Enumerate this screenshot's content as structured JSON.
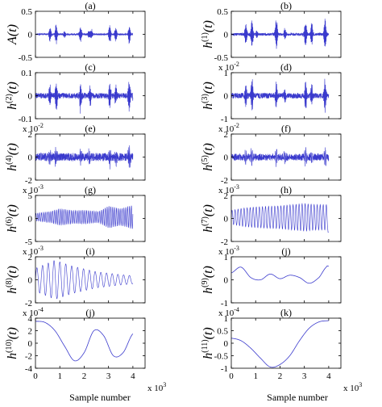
{
  "figure": {
    "xlabel": "Sample number",
    "x_multiplier": "x 10",
    "x_multiplier_exp": "3",
    "line_color": "#3a3acd"
  },
  "chart_data": [
    {
      "type": "line",
      "title": "(a)",
      "ylabel": {
        "base": "A",
        "sup": ""
      },
      "exp": "",
      "ylim": [
        -0.5,
        0.5
      ],
      "yticks": [
        -0.5,
        0,
        0.5
      ],
      "ytick_labels": [
        "-0.5",
        "0",
        "0.5"
      ],
      "xlim": [
        0,
        4.5
      ],
      "xticks": [
        0,
        1,
        2,
        3,
        4
      ],
      "xtick_labels": [],
      "signal": {
        "kind": "bursts",
        "noise": 0.02,
        "carrier": 45,
        "bursts": [
          [
            0.6,
            0.18
          ],
          [
            0.85,
            0.25
          ],
          [
            1.2,
            0.08
          ],
          [
            1.85,
            0.2
          ],
          [
            2.2,
            0.1
          ],
          [
            2.3,
            0.12
          ],
          [
            3.05,
            0.22
          ],
          [
            3.3,
            0.18
          ],
          [
            3.85,
            0.22
          ],
          [
            4.05,
            0.1
          ]
        ]
      }
    },
    {
      "type": "line",
      "title": "(b)",
      "ylabel": {
        "base": "h",
        "sup": "(1)"
      },
      "exp": "",
      "ylim": [
        -0.5,
        0.5
      ],
      "yticks": [
        -0.5,
        0,
        0.5
      ],
      "ytick_labels": [
        "-0.5",
        "0",
        "0.5"
      ],
      "xlim": [
        0,
        4.5
      ],
      "xticks": [
        0,
        1,
        2,
        3,
        4
      ],
      "xtick_labels": [],
      "signal": {
        "kind": "bursts",
        "noise": 0.03,
        "carrier": 50,
        "bursts": [
          [
            0.6,
            0.3
          ],
          [
            0.85,
            0.4
          ],
          [
            1.05,
            0.1
          ],
          [
            1.85,
            0.4
          ],
          [
            2.2,
            0.15
          ],
          [
            3.05,
            0.35
          ],
          [
            3.3,
            0.3
          ],
          [
            3.85,
            0.4
          ],
          [
            4.05,
            0.15
          ]
        ]
      }
    },
    {
      "type": "line",
      "title": "(c)",
      "ylabel": {
        "base": "h",
        "sup": "(2)"
      },
      "exp": "",
      "ylim": [
        -0.1,
        0.1
      ],
      "yticks": [
        -0.1,
        0,
        0.1
      ],
      "ytick_labels": [
        "-0.1",
        "0",
        "0.1"
      ],
      "xlim": [
        0,
        4.5
      ],
      "xticks": [
        0,
        1,
        2,
        3,
        4
      ],
      "xtick_labels": [],
      "signal": {
        "kind": "bursts",
        "noise": 0.012,
        "carrier": 40,
        "bursts": [
          [
            0.6,
            0.05
          ],
          [
            0.85,
            0.08
          ],
          [
            1.85,
            0.07
          ],
          [
            2.25,
            0.05
          ],
          [
            3.05,
            0.06
          ],
          [
            3.3,
            0.05
          ],
          [
            3.85,
            0.08
          ],
          [
            4.05,
            0.04
          ]
        ]
      }
    },
    {
      "type": "line",
      "title": "(d)",
      "ylabel": {
        "base": "h",
        "sup": "(3)"
      },
      "exp": "2",
      "ylim": [
        -1,
        1
      ],
      "yticks": [
        -1,
        0,
        1
      ],
      "ytick_labels": [
        "-1",
        "0",
        "1"
      ],
      "xlim": [
        0,
        4.5
      ],
      "xticks": [
        0,
        1,
        2,
        3,
        4
      ],
      "xtick_labels": [],
      "signal": {
        "kind": "bursts",
        "noise": 0.12,
        "carrier": 35,
        "bursts": [
          [
            0.6,
            0.5
          ],
          [
            0.85,
            0.8
          ],
          [
            1.85,
            0.6
          ],
          [
            2.2,
            0.4
          ],
          [
            3.05,
            0.7
          ],
          [
            3.3,
            0.5
          ],
          [
            3.85,
            0.8
          ],
          [
            4.05,
            0.4
          ]
        ]
      }
    },
    {
      "type": "line",
      "title": "(e)",
      "ylabel": {
        "base": "h",
        "sup": "(4)"
      },
      "exp": "2",
      "ylim": [
        -2,
        2
      ],
      "yticks": [
        -2,
        0,
        2
      ],
      "ytick_labels": [
        "-2",
        "0",
        "2"
      ],
      "xlim": [
        0,
        4.5
      ],
      "xticks": [
        0,
        1,
        2,
        3,
        4
      ],
      "xtick_labels": [],
      "signal": {
        "kind": "bursts",
        "noise": 0.35,
        "carrier": 28,
        "bursts": [
          [
            0.6,
            0.9
          ],
          [
            0.85,
            1.2
          ],
          [
            1.85,
            0.9
          ],
          [
            2.2,
            0.6
          ],
          [
            3.05,
            1.0
          ],
          [
            3.3,
            0.8
          ],
          [
            3.85,
            1.3
          ],
          [
            4.05,
            0.6
          ]
        ]
      }
    },
    {
      "type": "line",
      "title": "(f)",
      "ylabel": {
        "base": "h",
        "sup": "(5)"
      },
      "exp": "2",
      "ylim": [
        -2,
        2
      ],
      "yticks": [
        -2,
        0,
        2
      ],
      "ytick_labels": [
        "-2",
        "0",
        "2"
      ],
      "xlim": [
        0,
        4.5
      ],
      "xticks": [
        0,
        1,
        2,
        3,
        4
      ],
      "xtick_labels": [],
      "signal": {
        "kind": "bursts",
        "noise": 0.3,
        "carrier": 20,
        "bursts": [
          [
            0.6,
            0.6
          ],
          [
            0.85,
            0.9
          ],
          [
            1.85,
            0.8
          ],
          [
            2.2,
            0.5
          ],
          [
            3.05,
            0.9
          ],
          [
            3.3,
            0.6
          ],
          [
            3.85,
            1.0
          ],
          [
            4.05,
            0.5
          ]
        ]
      }
    },
    {
      "type": "line",
      "title": "(g)",
      "ylabel": {
        "base": "h",
        "sup": "(6)"
      },
      "exp": "3",
      "ylim": [
        -5,
        5
      ],
      "yticks": [
        -5,
        0,
        5
      ],
      "ytick_labels": [
        "-5",
        "0",
        "5"
      ],
      "xlim": [
        0,
        4.5
      ],
      "xticks": [
        0,
        1,
        2,
        3,
        4
      ],
      "xtick_labels": [],
      "signal": {
        "kind": "oscillation",
        "freq": 13,
        "amp": [
          [
            0,
            0.8
          ],
          [
            0.6,
            1.2
          ],
          [
            1.0,
            1.8
          ],
          [
            1.6,
            1.4
          ],
          [
            2.0,
            1.5
          ],
          [
            2.6,
            1.2
          ],
          [
            3.0,
            2.4
          ],
          [
            3.5,
            1.8
          ],
          [
            4.0,
            2.6
          ]
        ],
        "offset": 0.3
      }
    },
    {
      "type": "line",
      "title": "(h)",
      "ylabel": {
        "base": "h",
        "sup": "(7)"
      },
      "exp": "3",
      "ylim": [
        -2,
        2
      ],
      "yticks": [
        -2,
        0,
        2
      ],
      "ytick_labels": [
        "-2",
        "0",
        "2"
      ],
      "xlim": [
        0,
        4.5
      ],
      "xticks": [
        0,
        1,
        2,
        3,
        4
      ],
      "xtick_labels": [],
      "signal": {
        "kind": "oscillation",
        "freq": 8,
        "amp": [
          [
            0,
            0.6
          ],
          [
            0.5,
            0.8
          ],
          [
            1.0,
            0.9
          ],
          [
            2.0,
            1.0
          ],
          [
            3.0,
            1.2
          ],
          [
            3.5,
            1.1
          ],
          [
            4.0,
            1.1
          ]
        ],
        "offset": 0.1,
        "tail": -1.2
      }
    },
    {
      "type": "line",
      "title": "(i)",
      "ylabel": {
        "base": "h",
        "sup": "(8)"
      },
      "exp": "3",
      "ylim": [
        -2,
        2
      ],
      "yticks": [
        -2,
        0,
        2
      ],
      "ytick_labels": [
        "-2",
        "0",
        "2"
      ],
      "xlim": [
        0,
        4.5
      ],
      "xticks": [
        0,
        1,
        2,
        3,
        4
      ],
      "xtick_labels": [],
      "signal": {
        "kind": "oscillation",
        "freq": 4.2,
        "amp": [
          [
            0,
            1.0
          ],
          [
            0.8,
            1.7
          ],
          [
            1.5,
            1.2
          ],
          [
            2.5,
            0.7
          ],
          [
            3.5,
            0.45
          ],
          [
            4.0,
            0.35
          ]
        ],
        "offset": 0.0
      }
    },
    {
      "type": "line",
      "title": "(j)",
      "ylabel": {
        "base": "h",
        "sup": "(9)"
      },
      "exp": "3",
      "ylim": [
        -1,
        1
      ],
      "yticks": [
        -1,
        0,
        1
      ],
      "ytick_labels": [
        "-1",
        "0",
        "1"
      ],
      "xlim": [
        0,
        4.5
      ],
      "xticks": [
        0,
        1,
        2,
        3,
        4
      ],
      "xtick_labels": [],
      "signal": {
        "kind": "points",
        "x": [
          0,
          0.4,
          0.8,
          1.2,
          1.6,
          2.0,
          2.4,
          2.8,
          3.2,
          3.6,
          3.9,
          4.0
        ],
        "y": [
          0.3,
          0.55,
          0.1,
          0.0,
          0.25,
          0.05,
          0.2,
          0.1,
          -0.15,
          0.1,
          0.55,
          0.6
        ]
      }
    },
    {
      "type": "line",
      "title": "(j)",
      "ylabel": {
        "base": "h",
        "sup": "(10)"
      },
      "exp": "4",
      "ylim": [
        -4,
        4
      ],
      "yticks": [
        -4,
        -2,
        0,
        2,
        4
      ],
      "ytick_labels": [
        "-4",
        "-2",
        "0",
        "2",
        "4"
      ],
      "xlim": [
        0,
        4.5
      ],
      "xticks": [
        0,
        1,
        2,
        3,
        4
      ],
      "xtick_labels": [
        "0",
        "1",
        "2",
        "3",
        "4"
      ],
      "signal": {
        "kind": "points",
        "x": [
          0,
          0.4,
          0.8,
          1.2,
          1.6,
          2.0,
          2.4,
          2.8,
          3.2,
          3.6,
          4.0
        ],
        "y": [
          3.5,
          3.3,
          2.0,
          -0.5,
          -2.8,
          -1.5,
          2.0,
          1.2,
          -2.0,
          -1.5,
          1.5
        ]
      }
    },
    {
      "type": "line",
      "title": "(k)",
      "ylabel": {
        "base": "h",
        "sup": "(11)"
      },
      "exp": "4",
      "ylim": [
        -1,
        1
      ],
      "yticks": [
        -1,
        -0.5,
        0,
        0.5,
        1
      ],
      "ytick_labels": [
        "-1",
        "-0.5",
        "0",
        "0.5",
        "1"
      ],
      "xlim": [
        0,
        4.5
      ],
      "xticks": [
        0,
        1,
        2,
        3,
        4
      ],
      "xtick_labels": [
        "0",
        "1",
        "2",
        "3",
        "4"
      ],
      "signal": {
        "kind": "points",
        "x": [
          0,
          0.4,
          0.8,
          1.2,
          1.6,
          2.0,
          2.4,
          2.8,
          3.2,
          3.6,
          4.0
        ],
        "y": [
          0.2,
          0.1,
          -0.2,
          -0.6,
          -0.95,
          -0.85,
          -0.5,
          0.1,
          0.6,
          0.85,
          0.9
        ]
      }
    }
  ]
}
